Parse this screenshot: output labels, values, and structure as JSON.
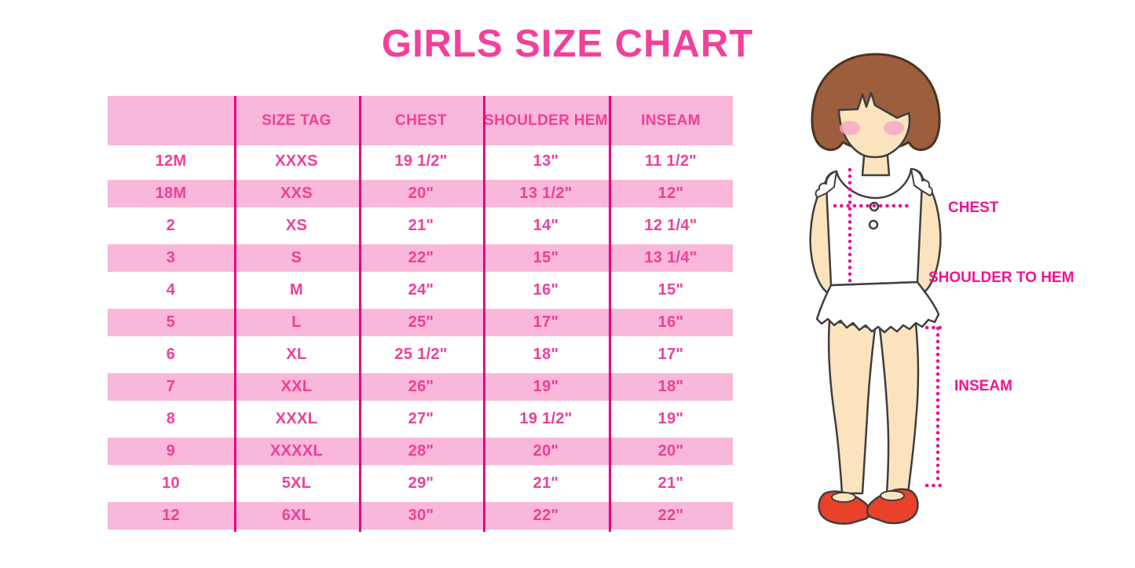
{
  "title": "GIRLS SIZE CHART",
  "colors": {
    "title_pink": "#f2419a",
    "table_text_pink": "#ef3f97",
    "row_pink": "#f9b7da",
    "divider_magenta": "#e6067e",
    "measure_magenta": "#ee1190",
    "hair_brown": "#9c5e3d",
    "skin": "#fbe3bd",
    "blush": "#f4aac7",
    "shoe_red": "#e8422a",
    "outline": "#3f3f3f"
  },
  "table": {
    "columns": [
      "",
      "SIZE TAG",
      "CHEST",
      "SHOULDER HEM",
      "INSEAM"
    ],
    "rows": [
      [
        "12M",
        "XXXS",
        "19 1/2\"",
        "13\"",
        "11 1/2\""
      ],
      [
        "18M",
        "XXS",
        "20\"",
        "13 1/2\"",
        "12\""
      ],
      [
        "2",
        "XS",
        "21\"",
        "14\"",
        "12 1/4\""
      ],
      [
        "3",
        "S",
        "22\"",
        "15\"",
        "13 1/4\""
      ],
      [
        "4",
        "M",
        "24\"",
        "16\"",
        "15\""
      ],
      [
        "5",
        "L",
        "25\"",
        "17\"",
        "16\""
      ],
      [
        "6",
        "XL",
        "25 1/2\"",
        "18\"",
        "17\""
      ],
      [
        "7",
        "XXL",
        "26\"",
        "19\"",
        "18\""
      ],
      [
        "8",
        "XXXL",
        "27\"",
        "19 1/2\"",
        "19\""
      ],
      [
        "9",
        "XXXXL",
        "28\"",
        "20\"",
        "20\""
      ],
      [
        "10",
        "5XL",
        "29\"",
        "21\"",
        "21\""
      ],
      [
        "12",
        "6XL",
        "30\"",
        "22\"",
        "22\""
      ]
    ]
  },
  "figure_labels": {
    "chest": "CHEST",
    "shoulder_to_hem": "SHOULDER TO HEM",
    "inseam": "INSEAM"
  }
}
